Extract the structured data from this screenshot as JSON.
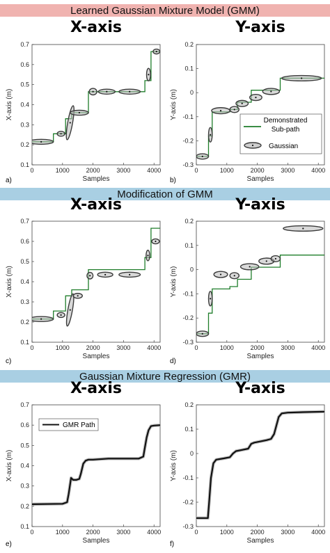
{
  "sections": [
    {
      "title": "Learned Gaussian Mixture Model (GMM)",
      "color": "#f0b3b0"
    },
    {
      "title": "Modification of GMM",
      "color": "#a9cfe3"
    },
    {
      "title": "Gaussian Mixture Regression (GMR)",
      "color": "#a9cfe3"
    }
  ],
  "colors": {
    "demo": "#1e7d2a",
    "gaussian": "#3a3a3a",
    "gmr": "#111111",
    "gaussian_fill": "#b9b9b9"
  },
  "chart_data": [
    {
      "id": "a",
      "panel_label": "a)",
      "title": "X-axis",
      "type": "line",
      "xlabel": "Samples",
      "ylabel": "X-axis (m)",
      "xlim": [
        0,
        4200
      ],
      "ylim": [
        0.1,
        0.7
      ],
      "xticks": [
        0,
        1000,
        2000,
        3000,
        4000
      ],
      "yticks": [
        0.1,
        0.2,
        0.3,
        0.4,
        0.5,
        0.6,
        0.7
      ],
      "series": [
        {
          "kind": "demo",
          "x": [
            0,
            700,
            700,
            1100,
            1100,
            1300,
            1300,
            1850,
            1850,
            3700,
            3700,
            3900,
            3900,
            4200
          ],
          "y": [
            0.215,
            0.215,
            0.255,
            0.255,
            0.33,
            0.33,
            0.36,
            0.36,
            0.465,
            0.465,
            0.52,
            0.52,
            0.665,
            0.665
          ]
        },
        {
          "kind": "gaussians",
          "items": [
            {
              "x": 300,
              "y": 0.215,
              "w": 800,
              "h": 0.012,
              "rot": 0
            },
            {
              "x": 950,
              "y": 0.255,
              "w": 250,
              "h": 0.012,
              "rot": 0
            },
            {
              "x": 1250,
              "y": 0.31,
              "w": 160,
              "h": 0.16,
              "rot": 10
            },
            {
              "x": 1550,
              "y": 0.36,
              "w": 600,
              "h": 0.012,
              "rot": 0
            },
            {
              "x": 2000,
              "y": 0.465,
              "w": 250,
              "h": 0.02,
              "rot": 0
            },
            {
              "x": 2450,
              "y": 0.465,
              "w": 550,
              "h": 0.012,
              "rot": 0
            },
            {
              "x": 3200,
              "y": 0.465,
              "w": 700,
              "h": 0.012,
              "rot": 0
            },
            {
              "x": 3820,
              "y": 0.55,
              "w": 130,
              "h": 0.05,
              "rot": 0
            },
            {
              "x": 4080,
              "y": 0.665,
              "w": 220,
              "h": 0.012,
              "rot": 0
            }
          ]
        }
      ]
    },
    {
      "id": "b",
      "panel_label": "b)",
      "title": "Y-axis",
      "type": "line",
      "xlabel": "Samples",
      "ylabel": "Y-axis (m)",
      "xlim": [
        0,
        4200
      ],
      "ylim": [
        -0.3,
        0.2
      ],
      "xticks": [
        0,
        1000,
        2000,
        3000,
        4000
      ],
      "yticks": [
        -0.3,
        -0.2,
        -0.1,
        0,
        0.1,
        0.2
      ],
      "legend": {
        "position": "right",
        "entries": [
          "Demonstrated Sub-path",
          "Gaussian"
        ]
      },
      "series": [
        {
          "kind": "demo",
          "x": [
            0,
            400,
            400,
            520,
            520,
            1100,
            1100,
            1350,
            1350,
            1800,
            1800,
            2750,
            2750,
            4200
          ],
          "y": [
            -0.265,
            -0.265,
            -0.18,
            -0.18,
            -0.08,
            -0.08,
            -0.07,
            -0.07,
            -0.04,
            -0.04,
            0.01,
            0.01,
            0.06,
            0.06
          ]
        },
        {
          "kind": "gaussians",
          "items": [
            {
              "x": 200,
              "y": -0.265,
              "w": 400,
              "h": 0.012,
              "rot": 0
            },
            {
              "x": 460,
              "y": -0.175,
              "w": 120,
              "h": 0.05,
              "rot": 0
            },
            {
              "x": 800,
              "y": -0.075,
              "w": 600,
              "h": 0.015,
              "rot": 0
            },
            {
              "x": 1250,
              "y": -0.07,
              "w": 300,
              "h": 0.015,
              "rot": 0
            },
            {
              "x": 1500,
              "y": -0.045,
              "w": 400,
              "h": 0.015,
              "rot": 0
            },
            {
              "x": 1950,
              "y": -0.02,
              "w": 400,
              "h": 0.015,
              "rot": 0
            },
            {
              "x": 2450,
              "y": 0.005,
              "w": 550,
              "h": 0.015,
              "rot": 0
            },
            {
              "x": 3450,
              "y": 0.06,
              "w": 1300,
              "h": 0.012,
              "rot": 0
            }
          ]
        }
      ]
    },
    {
      "id": "c",
      "panel_label": "c)",
      "title": "X-axis",
      "type": "line",
      "xlabel": "Samples",
      "ylabel": "X-axis (m)",
      "xlim": [
        0,
        4200
      ],
      "ylim": [
        0.1,
        0.7
      ],
      "xticks": [
        0,
        1000,
        2000,
        3000,
        4000
      ],
      "yticks": [
        0.1,
        0.2,
        0.3,
        0.4,
        0.5,
        0.6,
        0.7
      ],
      "series": [
        {
          "kind": "demo",
          "x": [
            0,
            700,
            700,
            1100,
            1100,
            1300,
            1300,
            1850,
            1850,
            3700,
            3700,
            3900,
            3900,
            4200
          ],
          "y": [
            0.215,
            0.215,
            0.255,
            0.255,
            0.33,
            0.33,
            0.36,
            0.36,
            0.46,
            0.46,
            0.52,
            0.52,
            0.665,
            0.665
          ]
        },
        {
          "kind": "gaussians",
          "items": [
            {
              "x": 300,
              "y": 0.215,
              "w": 800,
              "h": 0.012,
              "rot": 0
            },
            {
              "x": 950,
              "y": 0.235,
              "w": 250,
              "h": 0.012,
              "rot": 0
            },
            {
              "x": 1250,
              "y": 0.26,
              "w": 150,
              "h": 0.15,
              "rot": 10
            },
            {
              "x": 1500,
              "y": 0.33,
              "w": 300,
              "h": 0.012,
              "rot": 0
            },
            {
              "x": 1900,
              "y": 0.43,
              "w": 200,
              "h": 0.02,
              "rot": 0
            },
            {
              "x": 2400,
              "y": 0.435,
              "w": 500,
              "h": 0.012,
              "rot": 0
            },
            {
              "x": 3200,
              "y": 0.435,
              "w": 700,
              "h": 0.012,
              "rot": 0
            },
            {
              "x": 3800,
              "y": 0.53,
              "w": 120,
              "h": 0.04,
              "rot": 0
            },
            {
              "x": 4050,
              "y": 0.6,
              "w": 250,
              "h": 0.012,
              "rot": 0
            }
          ]
        }
      ]
    },
    {
      "id": "d",
      "panel_label": "d)",
      "title": "Y-axis",
      "type": "line",
      "xlabel": "Samples",
      "ylabel": "Y-axis (m)",
      "xlim": [
        0,
        4200
      ],
      "ylim": [
        -0.3,
        0.2
      ],
      "xticks": [
        0,
        1000,
        2000,
        3000,
        4000
      ],
      "yticks": [
        -0.3,
        -0.2,
        -0.1,
        0,
        0.1,
        0.2
      ],
      "series": [
        {
          "kind": "demo",
          "x": [
            0,
            400,
            400,
            520,
            520,
            1100,
            1100,
            1350,
            1350,
            1800,
            1800,
            2750,
            2750,
            4200
          ],
          "y": [
            -0.265,
            -0.265,
            -0.18,
            -0.18,
            -0.08,
            -0.08,
            -0.07,
            -0.07,
            -0.04,
            -0.04,
            0.01,
            0.01,
            0.06,
            0.06
          ]
        },
        {
          "kind": "gaussians",
          "items": [
            {
              "x": 200,
              "y": -0.265,
              "w": 400,
              "h": 0.012,
              "rot": 0
            },
            {
              "x": 460,
              "y": -0.12,
              "w": 120,
              "h": 0.05,
              "rot": 0
            },
            {
              "x": 800,
              "y": -0.02,
              "w": 450,
              "h": 0.015,
              "rot": 0
            },
            {
              "x": 1250,
              "y": -0.025,
              "w": 300,
              "h": 0.015,
              "rot": 0
            },
            {
              "x": 1750,
              "y": 0.012,
              "w": 600,
              "h": 0.015,
              "rot": 0
            },
            {
              "x": 2300,
              "y": 0.035,
              "w": 500,
              "h": 0.015,
              "rot": 0
            },
            {
              "x": 2600,
              "y": 0.045,
              "w": 300,
              "h": 0.015,
              "rot": 0
            },
            {
              "x": 3500,
              "y": 0.17,
              "w": 1300,
              "h": 0.012,
              "rot": 0
            }
          ]
        }
      ]
    },
    {
      "id": "e",
      "panel_label": "e)",
      "title": "X-axis",
      "type": "line",
      "xlabel": "Samples",
      "ylabel": "X-axis (m)",
      "xlim": [
        0,
        4200
      ],
      "ylim": [
        0.1,
        0.7
      ],
      "xticks": [
        0,
        1000,
        2000,
        3000,
        4000
      ],
      "yticks": [
        0.1,
        0.2,
        0.3,
        0.4,
        0.5,
        0.6,
        0.7
      ],
      "legend": {
        "position": "top-left",
        "entries": [
          "GMR Path"
        ]
      },
      "series": [
        {
          "kind": "gmr",
          "name": "GMR Path",
          "x": [
            0,
            1000,
            1150,
            1200,
            1280,
            1350,
            1450,
            1550,
            1600,
            1680,
            1760,
            1850,
            2000,
            2500,
            3000,
            3500,
            3650,
            3700,
            3760,
            3820,
            3900,
            4000,
            4200
          ],
          "y": [
            0.21,
            0.212,
            0.22,
            0.26,
            0.34,
            0.33,
            0.33,
            0.335,
            0.36,
            0.41,
            0.425,
            0.43,
            0.43,
            0.435,
            0.435,
            0.435,
            0.445,
            0.49,
            0.54,
            0.575,
            0.595,
            0.598,
            0.6
          ]
        }
      ]
    },
    {
      "id": "f",
      "panel_label": "f)",
      "title": "Y-axis",
      "type": "line",
      "xlabel": "Samples",
      "ylabel": "Y-axis (m)",
      "xlim": [
        0,
        4200
      ],
      "ylim": [
        -0.3,
        0.2
      ],
      "xticks": [
        0,
        1000,
        2000,
        3000,
        4000
      ],
      "yticks": [
        -0.3,
        -0.2,
        -0.1,
        0,
        0.1,
        0.2
      ],
      "series": [
        {
          "kind": "gmr",
          "x": [
            0,
            380,
            420,
            480,
            560,
            650,
            900,
            1100,
            1200,
            1300,
            1500,
            1700,
            1800,
            1900,
            2300,
            2450,
            2550,
            2700,
            2800,
            3000,
            3500,
            4200
          ],
          "y": [
            -0.265,
            -0.265,
            -0.2,
            -0.1,
            -0.04,
            -0.025,
            -0.02,
            -0.015,
            0.0,
            0.01,
            0.015,
            0.02,
            0.04,
            0.045,
            0.055,
            0.06,
            0.08,
            0.15,
            0.165,
            0.168,
            0.17,
            0.172
          ]
        }
      ]
    }
  ]
}
